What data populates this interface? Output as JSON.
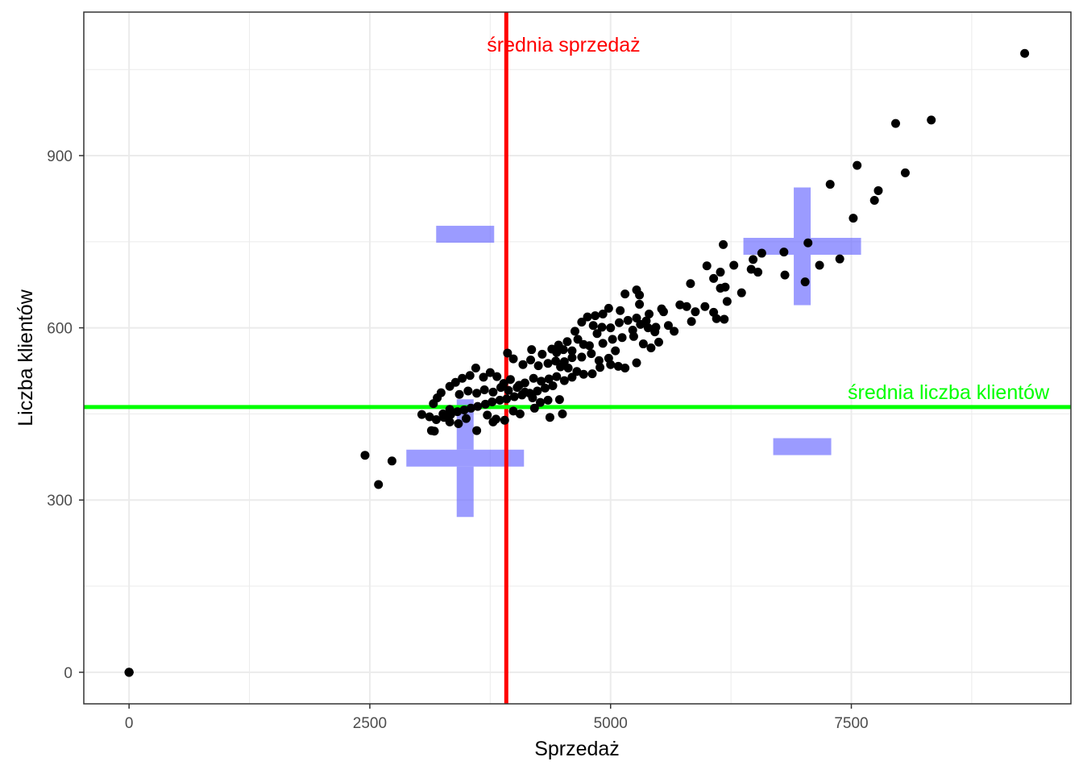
{
  "chart_data": {
    "type": "scatter",
    "xlabel": "Sprzedaż",
    "ylabel": "Liczba klientów",
    "xlim": [
      -470,
      9780
    ],
    "ylim": [
      -55,
      1150
    ],
    "x_ticks": [
      0,
      2500,
      5000,
      7500
    ],
    "x_tick_labels": [
      "0",
      "2500",
      "5000",
      "7500"
    ],
    "x_minor_ticks": [
      1250,
      3750,
      6250,
      8750
    ],
    "y_ticks": [
      0,
      300,
      600,
      900
    ],
    "y_tick_labels": [
      "0",
      "300",
      "600",
      "900"
    ],
    "y_minor_ticks": [
      150,
      450,
      750,
      1050
    ],
    "grid": true,
    "reference_lines": {
      "vertical": {
        "x": 3917,
        "label": "średnia sprzedaż",
        "color": "#ff0000"
      },
      "horizontal": {
        "y": 462,
        "label": "średnia liczba klientów",
        "color": "#00ff00"
      }
    },
    "quadrant_marks": [
      {
        "sign": "-",
        "x": 3490,
        "y": 763,
        "color": "#6666ff"
      },
      {
        "sign": "+",
        "x": 6990,
        "y": 742,
        "color": "#6666ff"
      },
      {
        "sign": "+",
        "x": 3490,
        "y": 373,
        "color": "#6666ff"
      },
      {
        "sign": "-",
        "x": 6990,
        "y": 393,
        "color": "#6666ff"
      }
    ],
    "point_color": "#000000",
    "points": [
      [
        0,
        0
      ],
      [
        0,
        0
      ],
      [
        0,
        0
      ],
      [
        0,
        0
      ],
      [
        0,
        0
      ],
      [
        9300,
        1078
      ],
      [
        8330,
        962
      ],
      [
        7960,
        956
      ],
      [
        8060,
        870
      ],
      [
        7560,
        883
      ],
      [
        7280,
        850
      ],
      [
        7780,
        839
      ],
      [
        7740,
        822
      ],
      [
        7520,
        791
      ],
      [
        7050,
        748
      ],
      [
        6170,
        745
      ],
      [
        6570,
        730
      ],
      [
        7380,
        720
      ],
      [
        7170,
        709
      ],
      [
        6480,
        719
      ],
      [
        6280,
        709
      ],
      [
        6800,
        732
      ],
      [
        6810,
        692
      ],
      [
        7020,
        680
      ],
      [
        6460,
        702
      ],
      [
        6530,
        697
      ],
      [
        6140,
        669
      ],
      [
        6360,
        661
      ],
      [
        6000,
        708
      ],
      [
        6070,
        686
      ],
      [
        5830,
        677
      ],
      [
        6140,
        697
      ],
      [
        6190,
        671
      ],
      [
        5270,
        666
      ],
      [
        5150,
        659
      ],
      [
        5300,
        657
      ],
      [
        6210,
        646
      ],
      [
        6180,
        615
      ],
      [
        6070,
        627
      ],
      [
        5980,
        637
      ],
      [
        5790,
        637
      ],
      [
        5880,
        628
      ],
      [
        5720,
        640
      ],
      [
        5840,
        611
      ],
      [
        5300,
        641
      ],
      [
        5530,
        633
      ],
      [
        6100,
        616
      ],
      [
        5400,
        624
      ],
      [
        5370,
        612
      ],
      [
        5550,
        628
      ],
      [
        5470,
        601
      ],
      [
        5270,
        617
      ],
      [
        5100,
        630
      ],
      [
        4920,
        624
      ],
      [
        4760,
        619
      ],
      [
        4980,
        634
      ],
      [
        4840,
        621
      ],
      [
        4910,
        601
      ],
      [
        4860,
        590
      ],
      [
        5000,
        600
      ],
      [
        5090,
        609
      ],
      [
        5180,
        613
      ],
      [
        5230,
        596
      ],
      [
        5310,
        606
      ],
      [
        5390,
        600
      ],
      [
        5460,
        593
      ],
      [
        5600,
        604
      ],
      [
        5660,
        594
      ],
      [
        4820,
        604
      ],
      [
        4630,
        594
      ],
      [
        4700,
        610
      ],
      [
        4660,
        580
      ],
      [
        4720,
        571
      ],
      [
        4550,
        576
      ],
      [
        4460,
        570
      ],
      [
        4510,
        562
      ],
      [
        4440,
        557
      ],
      [
        4390,
        563
      ],
      [
        4290,
        554
      ],
      [
        4180,
        562
      ],
      [
        4600,
        560
      ],
      [
        4780,
        569
      ],
      [
        4920,
        573
      ],
      [
        5020,
        580
      ],
      [
        5120,
        583
      ],
      [
        5240,
        585
      ],
      [
        5340,
        572
      ],
      [
        5420,
        565
      ],
      [
        5500,
        575
      ],
      [
        5050,
        560
      ],
      [
        4980,
        547
      ],
      [
        4880,
        543
      ],
      [
        4800,
        555
      ],
      [
        4700,
        549
      ],
      [
        4600,
        548
      ],
      [
        4520,
        541
      ],
      [
        4480,
        532
      ],
      [
        4430,
        542
      ],
      [
        4350,
        538
      ],
      [
        4250,
        534
      ],
      [
        4170,
        544
      ],
      [
        4090,
        536
      ],
      [
        3990,
        546
      ],
      [
        3930,
        556
      ],
      [
        4560,
        530
      ],
      [
        4650,
        524
      ],
      [
        4720,
        519
      ],
      [
        4810,
        520
      ],
      [
        4890,
        531
      ],
      [
        5000,
        536
      ],
      [
        5080,
        533
      ],
      [
        5150,
        530
      ],
      [
        5270,
        539
      ],
      [
        4600,
        514
      ],
      [
        4520,
        508
      ],
      [
        4440,
        515
      ],
      [
        4360,
        511
      ],
      [
        4280,
        507
      ],
      [
        4200,
        512
      ],
      [
        4110,
        504
      ],
      [
        4050,
        500
      ],
      [
        3960,
        510
      ],
      [
        3890,
        503
      ],
      [
        3820,
        515
      ],
      [
        3750,
        522
      ],
      [
        3680,
        514
      ],
      [
        3600,
        530
      ],
      [
        3540,
        517
      ],
      [
        3460,
        512
      ],
      [
        3390,
        505
      ],
      [
        3330,
        498
      ],
      [
        3240,
        487
      ],
      [
        3200,
        478
      ],
      [
        3160,
        468
      ],
      [
        4400,
        499
      ],
      [
        4320,
        495
      ],
      [
        4240,
        490
      ],
      [
        4160,
        486
      ],
      [
        4080,
        483
      ],
      [
        4000,
        480
      ],
      [
        3920,
        476
      ],
      [
        3850,
        474
      ],
      [
        3770,
        471
      ],
      [
        3700,
        467
      ],
      [
        3620,
        463
      ],
      [
        3550,
        460
      ],
      [
        3480,
        457
      ],
      [
        3410,
        454
      ],
      [
        3340,
        449
      ],
      [
        3270,
        444
      ],
      [
        3190,
        440
      ],
      [
        3120,
        445
      ],
      [
        3040,
        449
      ],
      [
        3430,
        484
      ],
      [
        3520,
        490
      ],
      [
        3610,
        486
      ],
      [
        3690,
        492
      ],
      [
        3780,
        488
      ],
      [
        3860,
        496
      ],
      [
        3940,
        491
      ],
      [
        4030,
        496
      ],
      [
        4110,
        488
      ],
      [
        4190,
        478
      ],
      [
        4270,
        470
      ],
      [
        4350,
        474
      ],
      [
        4470,
        475
      ],
      [
        3170,
        420
      ],
      [
        3140,
        421
      ],
      [
        3330,
        436
      ],
      [
        3500,
        442
      ],
      [
        3720,
        448
      ],
      [
        3810,
        441
      ],
      [
        3900,
        439
      ],
      [
        3990,
        455
      ],
      [
        4060,
        450
      ],
      [
        3780,
        436
      ],
      [
        3610,
        421
      ],
      [
        3420,
        433
      ],
      [
        3330,
        458
      ],
      [
        3260,
        450
      ],
      [
        4500,
        450
      ],
      [
        4370,
        444
      ],
      [
        4210,
        460
      ],
      [
        2450,
        378
      ],
      [
        2730,
        368
      ],
      [
        2590,
        327
      ]
    ]
  }
}
